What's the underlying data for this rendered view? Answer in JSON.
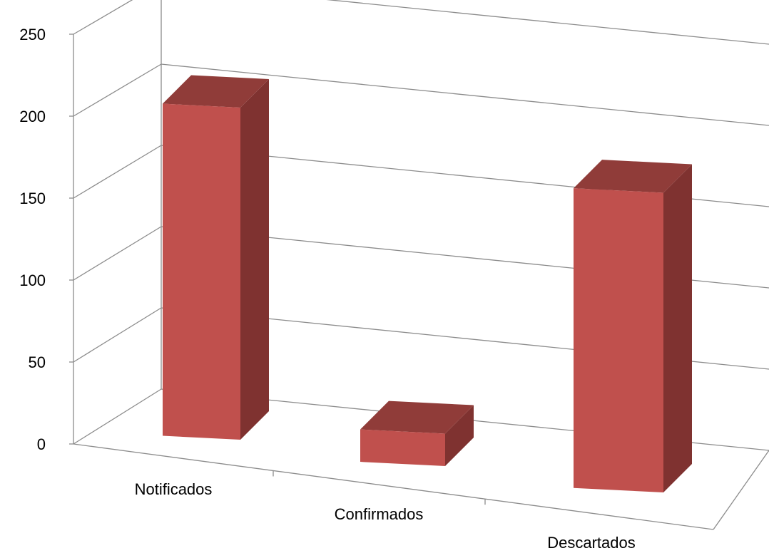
{
  "chart_data": {
    "type": "bar",
    "three_d": true,
    "categories": [
      "Notificados",
      "Confirmados",
      "Descartados"
    ],
    "values": [
      205,
      20,
      185
    ],
    "ylim": [
      0,
      250
    ],
    "yticks": [
      "0",
      "50",
      "100",
      "150",
      "200",
      "250"
    ],
    "grid": true,
    "legend": "none",
    "title": "",
    "xlabel": "",
    "ylabel": ""
  },
  "colors": {
    "bar_front": "#c0504d",
    "bar_side": "#7f3230",
    "bar_top": "#903c39",
    "grid": "#8c8c8c",
    "text": "#000000"
  }
}
